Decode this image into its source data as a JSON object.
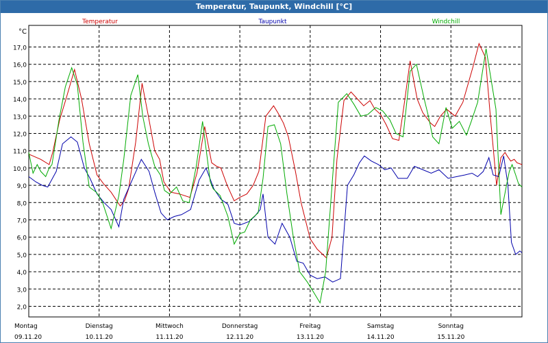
{
  "window": {
    "title": "Temperatur, Taupunkt, Windchill [°C]"
  },
  "chart_data": {
    "type": "line",
    "yunit": "°C",
    "ylim": [
      1.4,
      18.0
    ],
    "xlim": [
      0,
      7.01
    ],
    "grid": true,
    "legend": "top",
    "y_ticks": [
      "2,0",
      "3,0",
      "4,0",
      "5,0",
      "6,0",
      "7,0",
      "8,0",
      "9,0",
      "10,0",
      "11,0",
      "12,0",
      "13,0",
      "14,0",
      "15,0",
      "16,0",
      "17,0"
    ],
    "x_ticks": [
      {
        "day": "Montag",
        "date": "09.11.20"
      },
      {
        "day": "Dienstag",
        "date": "10.11.20"
      },
      {
        "day": "Mittwoch",
        "date": "11.11.20"
      },
      {
        "day": "Donnerstag",
        "date": "12.11.20"
      },
      {
        "day": "Freitag",
        "date": "13.11.20"
      },
      {
        "day": "Samstag",
        "date": "14.11.20"
      },
      {
        "day": "Sonntag",
        "date": "15.11.20"
      }
    ],
    "series": [
      {
        "name": "Temperatur",
        "color": "#cc0000",
        "x": [
          0.0,
          0.17,
          0.29,
          0.34,
          0.44,
          0.53,
          0.65,
          0.75,
          0.86,
          0.97,
          1.06,
          1.17,
          1.3,
          1.36,
          1.42,
          1.52,
          1.61,
          1.7,
          1.79,
          1.86,
          1.92,
          2.02,
          2.14,
          2.29,
          2.39,
          2.5,
          2.6,
          2.67,
          2.73,
          2.82,
          2.92,
          3.0,
          3.1,
          3.19,
          3.27,
          3.37,
          3.48,
          3.54,
          3.62,
          3.69,
          3.79,
          3.87,
          4.0,
          4.1,
          4.23,
          4.31,
          4.38,
          4.48,
          4.58,
          4.67,
          4.76,
          4.85,
          4.92,
          5.0,
          5.08,
          5.17,
          5.26,
          5.33,
          5.42,
          5.52,
          5.6,
          5.71,
          5.77,
          5.85,
          5.94,
          6.06,
          6.17,
          6.31,
          6.4,
          6.49,
          6.56,
          6.65,
          6.71,
          6.77,
          6.8,
          6.85,
          6.9,
          6.94,
          7.01
        ],
        "values": [
          10.8,
          10.5,
          10.2,
          10.9,
          12.8,
          14.0,
          15.7,
          14.0,
          11.4,
          9.6,
          9.1,
          8.6,
          7.8,
          8.1,
          8.8,
          11.5,
          14.9,
          13.0,
          11.0,
          10.5,
          9.2,
          8.6,
          8.5,
          8.3,
          9.7,
          12.4,
          10.3,
          10.1,
          10.0,
          9.0,
          8.1,
          8.3,
          8.5,
          9.0,
          9.8,
          13.0,
          13.6,
          13.2,
          12.6,
          11.8,
          9.8,
          8.0,
          5.9,
          5.3,
          4.8,
          6.0,
          10.5,
          13.9,
          14.4,
          14.0,
          13.6,
          13.9,
          13.4,
          13.1,
          12.5,
          11.7,
          11.6,
          13.5,
          16.2,
          14.0,
          13.2,
          12.6,
          12.4,
          13.0,
          13.4,
          13.0,
          13.8,
          15.8,
          17.2,
          16.4,
          13.0,
          9.0,
          10.6,
          10.9,
          10.7,
          10.4,
          10.5,
          10.3,
          10.2
        ]
      },
      {
        "name": "Taupunkt",
        "color": "#0000aa",
        "x": [
          0.0,
          0.1,
          0.19,
          0.27,
          0.39,
          0.48,
          0.6,
          0.69,
          0.79,
          0.87,
          0.97,
          1.07,
          1.17,
          1.28,
          1.35,
          1.48,
          1.6,
          1.71,
          1.79,
          1.88,
          1.97,
          2.07,
          2.17,
          2.3,
          2.42,
          2.52,
          2.63,
          2.73,
          2.83,
          2.92,
          3.0,
          3.13,
          3.21,
          3.29,
          3.33,
          3.4,
          3.5,
          3.6,
          3.71,
          3.81,
          3.9,
          4.0,
          4.1,
          4.21,
          4.32,
          4.43,
          4.53,
          4.62,
          4.7,
          4.77,
          4.87,
          4.97,
          5.06,
          5.15,
          5.25,
          5.38,
          5.48,
          5.6,
          5.72,
          5.83,
          5.96,
          6.08,
          6.2,
          6.3,
          6.38,
          6.46,
          6.54,
          6.6,
          6.68,
          6.75,
          6.81,
          6.86,
          6.92,
          6.98,
          7.01
        ],
        "values": [
          9.5,
          9.2,
          9.0,
          8.9,
          9.8,
          11.4,
          11.8,
          11.5,
          10.0,
          9.4,
          8.5,
          8.0,
          7.6,
          6.6,
          8.2,
          9.4,
          10.5,
          9.8,
          8.6,
          7.4,
          7.0,
          7.2,
          7.3,
          7.6,
          9.3,
          10.0,
          8.8,
          8.2,
          7.9,
          6.8,
          6.7,
          6.9,
          7.2,
          7.6,
          8.5,
          6.0,
          5.6,
          6.8,
          6.0,
          4.6,
          4.5,
          3.8,
          3.6,
          3.7,
          3.4,
          3.6,
          9.0,
          9.6,
          10.3,
          10.7,
          10.4,
          10.2,
          9.9,
          10.0,
          9.4,
          9.4,
          10.1,
          9.9,
          9.7,
          9.9,
          9.4,
          9.5,
          9.6,
          9.7,
          9.5,
          9.8,
          10.6,
          9.6,
          9.5,
          10.7,
          9.0,
          5.7,
          5.0,
          5.2,
          5.1
        ]
      },
      {
        "name": "Windchill",
        "color": "#00aa00",
        "x": [
          0.0,
          0.06,
          0.12,
          0.17,
          0.24,
          0.29,
          0.33,
          0.43,
          0.52,
          0.61,
          0.69,
          0.77,
          0.86,
          0.96,
          1.05,
          1.17,
          1.28,
          1.35,
          1.45,
          1.55,
          1.62,
          1.7,
          1.79,
          1.87,
          1.93,
          2.0,
          2.1,
          2.19,
          2.28,
          2.38,
          2.47,
          2.58,
          2.62,
          2.72,
          2.83,
          2.92,
          3.0,
          3.07,
          3.15,
          3.26,
          3.33,
          3.4,
          3.49,
          3.58,
          3.67,
          3.76,
          3.85,
          3.96,
          4.05,
          4.14,
          4.22,
          4.31,
          4.4,
          4.52,
          4.62,
          4.72,
          4.82,
          4.93,
          5.03,
          5.13,
          5.22,
          5.32,
          5.42,
          5.51,
          5.62,
          5.68,
          5.74,
          5.83,
          5.93,
          6.02,
          6.12,
          6.22,
          6.29,
          6.38,
          6.5,
          6.64,
          6.71,
          6.79,
          6.83,
          6.87,
          6.92,
          6.96,
          7.01
        ],
        "values": [
          10.9,
          9.7,
          10.2,
          9.8,
          9.5,
          10.0,
          10.2,
          12.8,
          14.7,
          15.8,
          14.8,
          11.5,
          8.9,
          8.6,
          8.0,
          6.5,
          8.4,
          10.5,
          14.2,
          15.4,
          13.0,
          11.4,
          10.1,
          9.6,
          8.7,
          8.5,
          8.9,
          8.1,
          8.0,
          10.1,
          12.7,
          9.2,
          8.8,
          8.4,
          7.2,
          5.6,
          6.2,
          6.3,
          7.0,
          7.4,
          9.4,
          12.4,
          12.5,
          11.4,
          8.5,
          6.0,
          4.0,
          3.4,
          2.8,
          2.2,
          4.0,
          9.0,
          13.8,
          14.3,
          13.7,
          13.0,
          13.1,
          13.5,
          13.3,
          12.8,
          12.0,
          11.8,
          15.6,
          16.0,
          14.0,
          13.0,
          11.8,
          11.4,
          13.5,
          12.3,
          12.7,
          11.9,
          12.7,
          13.8,
          16.9,
          13.4,
          7.3,
          9.0,
          9.8,
          10.2,
          9.6,
          9.1,
          8.9
        ]
      }
    ]
  }
}
